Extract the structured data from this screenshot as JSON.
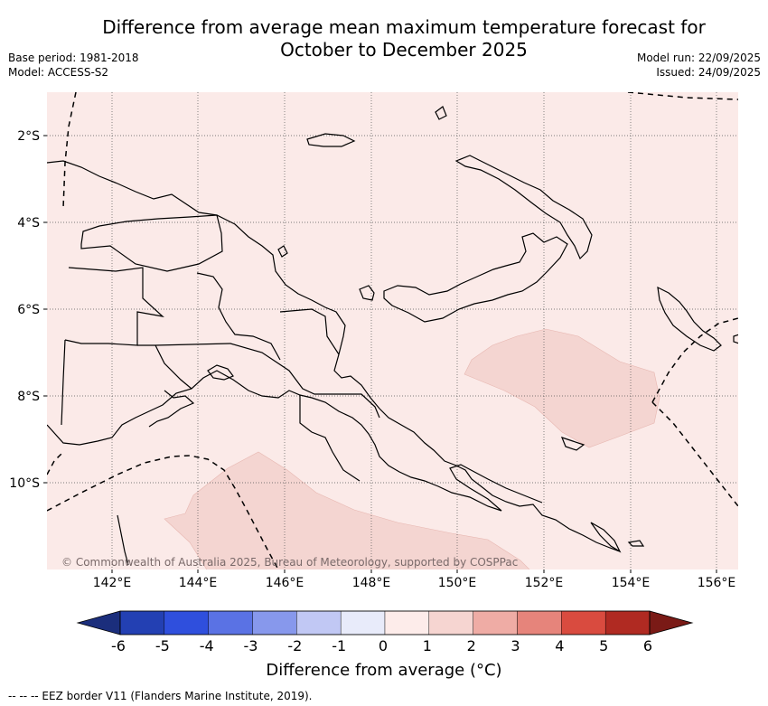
{
  "title": {
    "line1": "Difference from average mean maximum temperature forecast for",
    "line2": "October to December 2025"
  },
  "meta": {
    "base_period": "Base period: 1981-2018",
    "model": "Model: ACCESS-S2",
    "model_run": "Model run: 22/09/2025",
    "issued": "Issued: 24/09/2025"
  },
  "map": {
    "x_ticks": [
      "142°E",
      "144°E",
      "146°E",
      "148°E",
      "150°E",
      "152°E",
      "154°E",
      "156°E"
    ],
    "y_ticks": [
      "2°S",
      "4°S",
      "6°S",
      "8°S",
      "10°S"
    ],
    "background_color": "#fbeae8",
    "anomaly_patch_color": "#f4d5d1",
    "copyright": "© Commonwealth of Australia 2025, Bureau of Meteorology, supported by COSPPac"
  },
  "colorbar": {
    "labels": [
      "-6",
      "-5",
      "-4",
      "-3",
      "-2",
      "-1",
      "0",
      "1",
      "2",
      "3",
      "4",
      "5",
      "6"
    ],
    "colors": [
      "#1b2e7c",
      "#2340b3",
      "#2f4fdd",
      "#5a72e4",
      "#8798ec",
      "#c1c8f4",
      "#e8ebfa",
      "#fdecea",
      "#f6d5d1",
      "#efaca5",
      "#e6847b",
      "#d94b3f",
      "#b02a22",
      "#7a1a16"
    ],
    "title": "Difference from average (°C)"
  },
  "footnote": "--  --  -- EEZ border V11 (Flanders Marine Institute, 2019)."
}
